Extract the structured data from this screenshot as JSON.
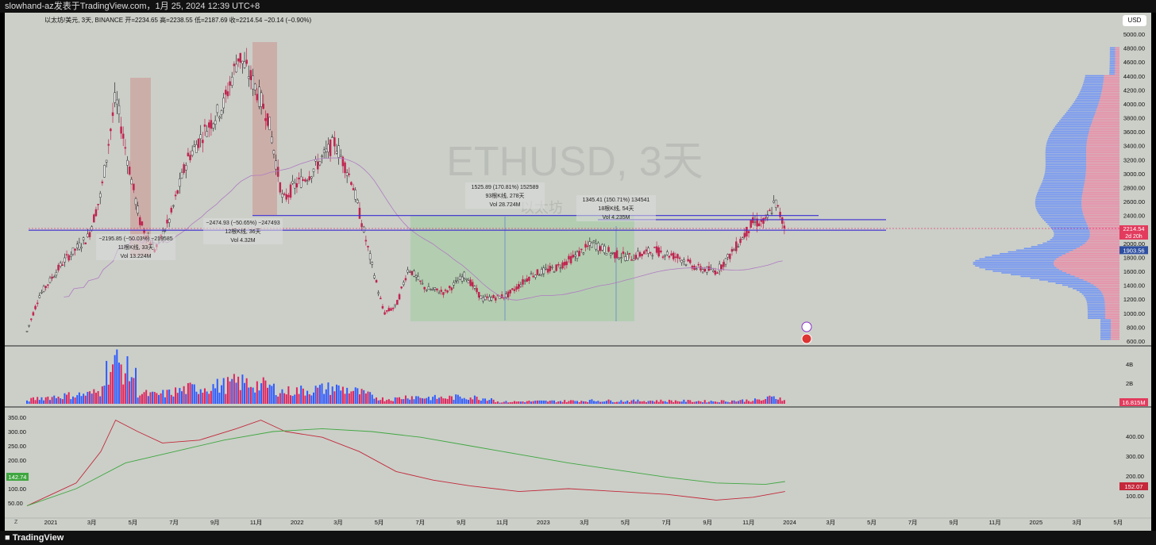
{
  "topbar": {
    "text": "slowhand-az发表于TradingView.com，1月 25, 2024 12:39 UTC+8"
  },
  "header": {
    "text": "以太坊/美元, 3天, BINANCE  开=2234.65  高=2238.55  低=2187.69  收=2214.54  −20.14 (−0.90%)"
  },
  "usd_button": "USD",
  "watermark": {
    "title": "ETHUSD, 3天",
    "subtitle": "以太坊"
  },
  "footer": {
    "logo": "TradingView",
    "z_label": "Z"
  },
  "colors": {
    "background": "#cbcfc8",
    "up": "#2c2c2c",
    "down": "#c0244f",
    "vol_up": "#2f5bff",
    "vol_down": "#e0245e",
    "sma": "#b07bc0",
    "level_line": "#3b2bd1",
    "ind_red": "#c4283a",
    "ind_green": "#3fa63f"
  },
  "chart_data": [
    {
      "type": "line",
      "series": [
        {
          "values": [
            [
              2021.0,
              740
            ],
            [
              2021.05,
              1250
            ],
            [
              2021.15,
              1750
            ],
            [
              2021.25,
              2100
            ],
            [
              2021.3,
              2700
            ],
            [
              2021.36,
              4100
            ],
            [
              2021.42,
              3000
            ],
            [
              2021.46,
              2300
            ],
            [
              2021.52,
              1900
            ],
            [
              2021.58,
              2350
            ],
            [
              2021.65,
              3200
            ],
            [
              2021.72,
              3600
            ],
            [
              2021.8,
              4000
            ],
            [
              2021.86,
              4700
            ],
            [
              2021.92,
              4300
            ],
            [
              2021.98,
              3800
            ],
            [
              2022.04,
              2600
            ],
            [
              2022.08,
              2800
            ],
            [
              2022.15,
              3000
            ],
            [
              2022.25,
              3450
            ],
            [
              2022.32,
              2900
            ],
            [
              2022.38,
              2000
            ],
            [
              2022.45,
              1000
            ],
            [
              2022.5,
              1100
            ],
            [
              2022.55,
              1650
            ],
            [
              2022.62,
              1350
            ],
            [
              2022.7,
              1300
            ],
            [
              2022.78,
              1550
            ],
            [
              2022.85,
              1200
            ],
            [
              2022.95,
              1250
            ],
            [
              2023.05,
              1550
            ],
            [
              2023.15,
              1650
            ],
            [
              2023.22,
              1800
            ],
            [
              2023.3,
              2000
            ],
            [
              2023.38,
              1850
            ],
            [
              2023.45,
              1800
            ],
            [
              2023.55,
              1900
            ],
            [
              2023.65,
              1800
            ],
            [
              2023.72,
              1650
            ],
            [
              2023.8,
              1600
            ],
            [
              2023.85,
              1800
            ],
            [
              2023.9,
              2050
            ],
            [
              2023.95,
              2300
            ],
            [
              2024.0,
              2300
            ],
            [
              2024.04,
              2600
            ],
            [
              2024.08,
              2214.54
            ]
          ]
        }
      ],
      "y_ticks": [
        "5000.00",
        "4800.00",
        "4600.00",
        "4400.00",
        "4200.00",
        "4000.00",
        "3800.00",
        "3600.00",
        "3400.00",
        "3200.00",
        "3000.00",
        "2800.00",
        "2600.00",
        "2400.00",
        "2200.00",
        "2000.00",
        "1800.00",
        "1600.00",
        "1400.00",
        "1200.00",
        "1000.00",
        "800.00",
        "600.00"
      ],
      "x_ticks": [
        "2021",
        "3月",
        "5月",
        "7月",
        "9月",
        "11月",
        "2022",
        "3月",
        "5月",
        "7月",
        "9月",
        "11月",
        "2023",
        "3月",
        "5月",
        "7月",
        "9月",
        "11月",
        "2024",
        "3月",
        "5月",
        "7月",
        "9月",
        "11月",
        "2025",
        "3月",
        "5月"
      ],
      "last_price": {
        "value": "2214.54",
        "countdown": "2d 20h"
      },
      "sma_label": "1903.56",
      "horizontal_levels": [
        2400,
        2340,
        2190
      ],
      "measurements": [
        {
          "line1": "−2195.85 (−50.03%) −219585",
          "line2": "11根K线, 33天",
          "line3": "Vol 13.224M"
        },
        {
          "line1": "−2474.93 (−50.65%) −247493",
          "line2": "12根K线, 36天",
          "line3": "Vol 4.32M"
        },
        {
          "line1": "1525.89 (170.81%) 152589",
          "line2": "93根K线, 278天",
          "line3": "Vol 28.724M"
        },
        {
          "line1": "1345.41 (150.71%) 134541",
          "line2": "18根K线, 54天",
          "line3": "Vol 4.235M"
        }
      ]
    },
    {
      "type": "bar",
      "name": "volume",
      "y_ticks": [
        "4B",
        "2B"
      ],
      "last_value": "16.815M"
    },
    {
      "type": "line",
      "name": "indicator",
      "left_ticks": [
        "350.00",
        "300.00",
        "250.00",
        "200.00",
        "150.00",
        "100.00",
        "50.00"
      ],
      "right_ticks": [
        "400.00",
        "300.00",
        "200.00",
        "100.00"
      ],
      "left_value": "142.74",
      "right_value": "152.07"
    }
  ]
}
